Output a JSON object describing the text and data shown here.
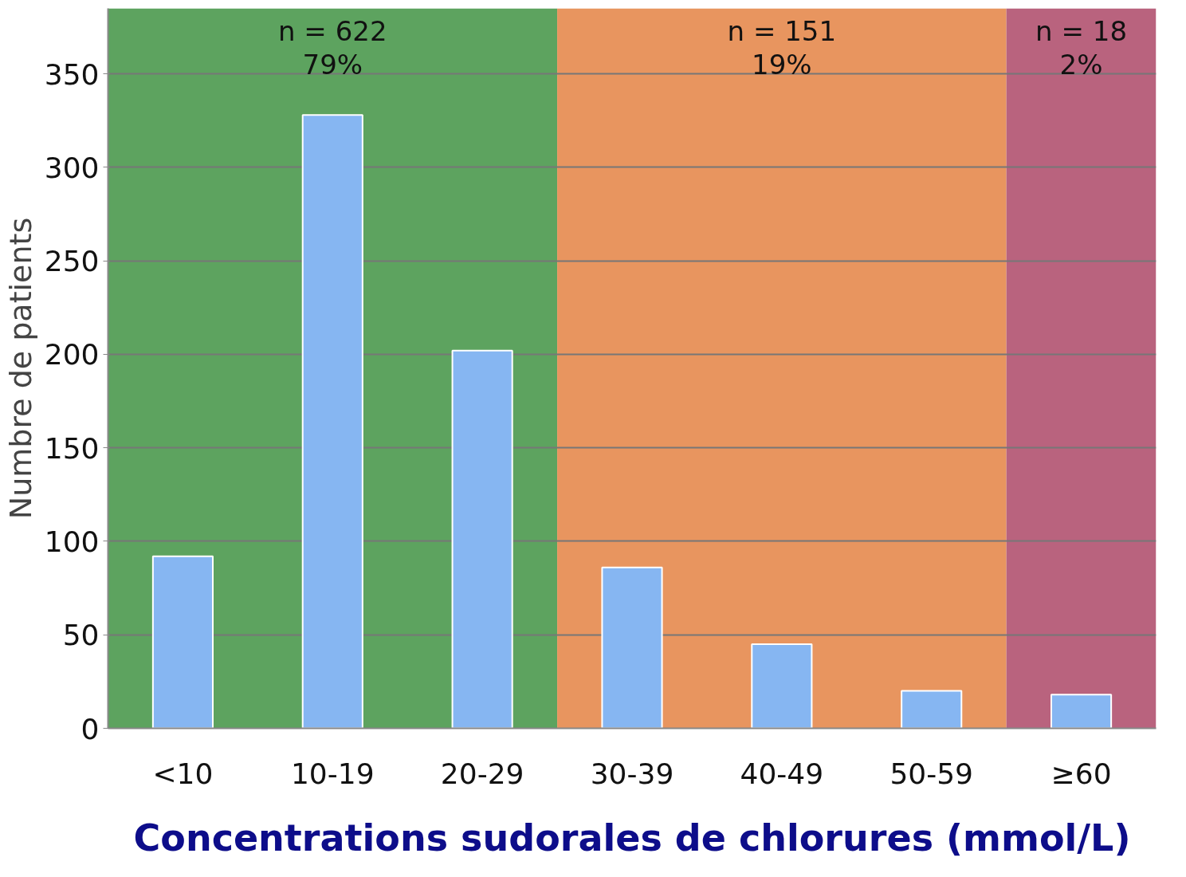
{
  "chart_data": {
    "type": "bar",
    "xlabel": "Concentrations sudorales de chlorures (mmol/L)",
    "ylabel": "Numbre de patients",
    "categories": [
      "<10",
      "10-19",
      "20-29",
      "30-39",
      "40-49",
      "50-59",
      "≥60"
    ],
    "values": [
      92,
      328,
      202,
      86,
      45,
      20,
      18
    ],
    "color": "#86b6f2",
    "ylim": [
      0,
      385
    ],
    "yticks": [
      0,
      50,
      100,
      150,
      200,
      250,
      300,
      350
    ],
    "grid": "y",
    "bands": [
      {
        "axis": "x",
        "from": "<10",
        "to": "20-29",
        "label": "n = 622\n79%",
        "color": "#5da35f"
      },
      {
        "axis": "x",
        "from": "30-39",
        "to": "50-59",
        "label": "n = 151\n19%",
        "color": "#e8955f"
      },
      {
        "axis": "x",
        "from": "≥60",
        "to": "≥60",
        "label": "n = 18\n2%",
        "color": "#b9637e"
      }
    ]
  }
}
